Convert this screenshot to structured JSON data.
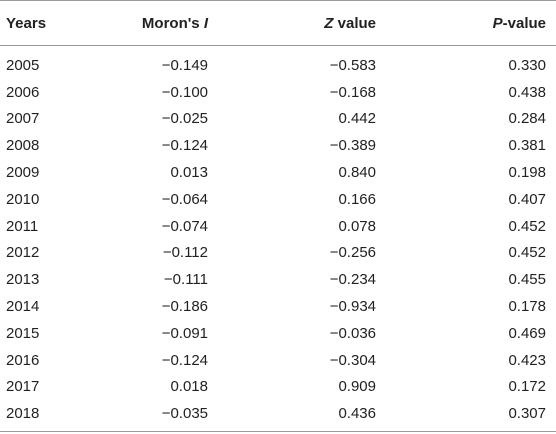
{
  "table": {
    "headers": {
      "years": "Years",
      "moran_prefix": "Moron's ",
      "moran_italic": "I",
      "z_italic": "Z",
      "z_suffix": " value",
      "p_italic": "P",
      "p_suffix": "-value"
    },
    "rows": [
      {
        "year": "2005",
        "moran": "−0.149",
        "z": "−0.583",
        "p": "0.330"
      },
      {
        "year": "2006",
        "moran": "−0.100",
        "z": "−0.168",
        "p": "0.438"
      },
      {
        "year": "2007",
        "moran": "−0.025",
        "z": "0.442",
        "p": "0.284"
      },
      {
        "year": "2008",
        "moran": "−0.124",
        "z": "−0.389",
        "p": "0.381"
      },
      {
        "year": "2009",
        "moran": "0.013",
        "z": "0.840",
        "p": "0.198"
      },
      {
        "year": "2010",
        "moran": "−0.064",
        "z": "0.166",
        "p": "0.407"
      },
      {
        "year": "2011",
        "moran": "−0.074",
        "z": "0.078",
        "p": "0.452"
      },
      {
        "year": "2012",
        "moran": "−0.112",
        "z": "−0.256",
        "p": "0.452"
      },
      {
        "year": "2013",
        "moran": "−0.111",
        "z": "−0.234",
        "p": "0.455"
      },
      {
        "year": "2014",
        "moran": "−0.186",
        "z": "−0.934",
        "p": "0.178"
      },
      {
        "year": "2015",
        "moran": "−0.091",
        "z": "−0.036",
        "p": "0.469"
      },
      {
        "year": "2016",
        "moran": "−0.124",
        "z": "−0.304",
        "p": "0.423"
      },
      {
        "year": "2017",
        "moran": "0.018",
        "z": "0.909",
        "p": "0.172"
      },
      {
        "year": "2018",
        "moran": "−0.035",
        "z": "0.436",
        "p": "0.307"
      }
    ]
  }
}
